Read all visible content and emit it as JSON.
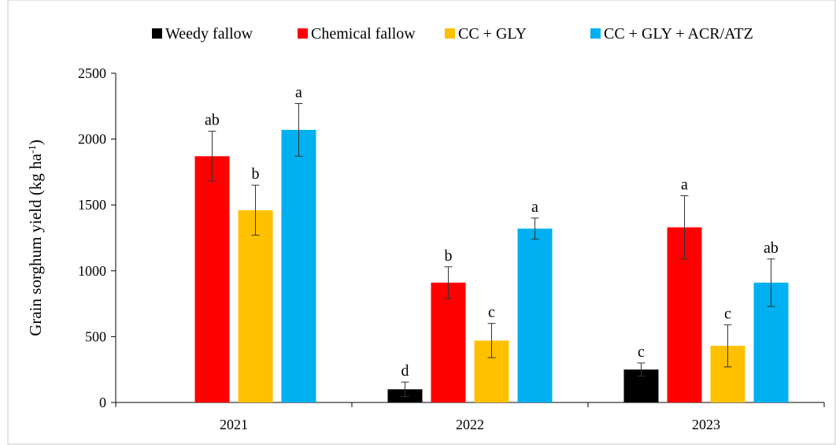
{
  "chart_data": {
    "type": "bar",
    "y_label": "Grain sorghum yield (kg ha",
    "y_label_sup": "-1",
    "y_label_end": ")",
    "categories": [
      "2021",
      "2022",
      "2023"
    ],
    "series": [
      {
        "name": "Weedy fallow",
        "color": "#000000",
        "values": [
          null,
          100,
          250
        ],
        "errors": [
          null,
          55,
          50
        ],
        "letters": [
          null,
          "d",
          "c"
        ]
      },
      {
        "name": "Chemical fallow",
        "color": "#ff0000",
        "values": [
          1870,
          910,
          1330
        ],
        "errors": [
          190,
          120,
          240
        ],
        "letters": [
          "ab",
          "b",
          "a"
        ]
      },
      {
        "name": "CC + GLY",
        "color": "#ffc000",
        "values": [
          1460,
          470,
          430
        ],
        "errors": [
          190,
          130,
          160
        ],
        "letters": [
          "b",
          "c",
          "c"
        ]
      },
      {
        "name": "CC + GLY + ACR/ATZ",
        "color": "#00b0f0",
        "values": [
          2070,
          1320,
          910
        ],
        "errors": [
          200,
          80,
          180
        ],
        "letters": [
          "a",
          "a",
          "ab"
        ]
      }
    ],
    "ylim": [
      0,
      2500
    ],
    "yticks": [
      0,
      500,
      1000,
      1500,
      2000,
      2500
    ]
  }
}
